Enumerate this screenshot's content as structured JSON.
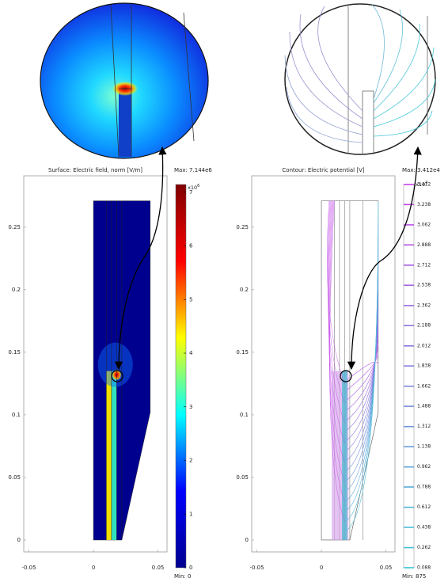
{
  "chart_data": [
    {
      "type": "surface",
      "title": "Surface: Electric field, norm [V/m]",
      "max_label": "Max: 7.144e6",
      "min_label": "Min: 0",
      "xlim": [
        -0.054,
        0.057
      ],
      "ylim": [
        -0.0095,
        0.291
      ],
      "xticks": [
        -0.05,
        0,
        0.05
      ],
      "yticks": [
        0,
        0.05,
        0.1,
        0.15,
        0.2,
        0.25
      ],
      "colorbar": {
        "lim": [
          0,
          7.144
        ],
        "ticks": [
          0,
          1,
          2,
          3,
          4,
          5,
          6,
          7
        ],
        "multiplier": "x10",
        "exponent": "6",
        "colors": [
          "#00008f",
          "#0000ff",
          "#00ffff",
          "#ffff00",
          "#ff0000",
          "#800000"
        ]
      }
    },
    {
      "type": "contour",
      "title": "Contour: Electric potential [V]",
      "max_label": "Max: 3.412e4",
      "min_label": "Min: 875",
      "xlim": [
        -0.054,
        0.057
      ],
      "ylim": [
        -0.0095,
        0.291
      ],
      "xticks": [
        -0.05,
        0,
        0.05
      ],
      "yticks": [
        0,
        0.05,
        0.1,
        0.15,
        0.2,
        0.25
      ],
      "colorbar": {
        "lim": [
          0.0875,
          3.412
        ],
        "ticks": [
          0.088,
          0.262,
          0.438,
          0.612,
          0.788,
          0.962,
          1.138,
          1.312,
          1.488,
          1.662,
          1.838,
          2.012,
          2.188,
          2.362,
          2.538,
          2.712,
          2.888,
          3.062,
          3.238,
          3.412
        ],
        "multiplier": "x10",
        "exponent": "4",
        "colors": [
          "#3cc8d8",
          "#c840e8"
        ]
      }
    }
  ]
}
